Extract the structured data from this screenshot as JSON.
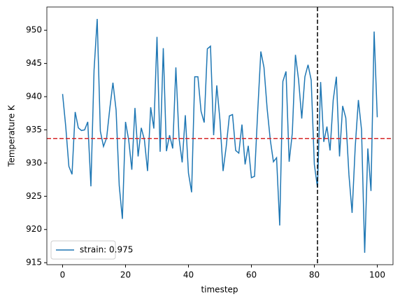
{
  "chart_data": {
    "type": "line",
    "xlabel": "timestep",
    "ylabel": "Temperature K",
    "x": [
      0,
      1,
      2,
      3,
      4,
      5,
      6,
      7,
      8,
      9,
      10,
      11,
      12,
      13,
      14,
      15,
      16,
      17,
      18,
      19,
      20,
      21,
      22,
      23,
      24,
      25,
      26,
      27,
      28,
      29,
      30,
      31,
      32,
      33,
      34,
      35,
      36,
      37,
      38,
      39,
      40,
      41,
      42,
      43,
      44,
      45,
      46,
      47,
      48,
      49,
      50,
      51,
      52,
      53,
      54,
      55,
      56,
      57,
      58,
      59,
      60,
      61,
      62,
      63,
      64,
      65,
      66,
      67,
      68,
      69,
      70,
      71,
      72,
      73,
      74,
      75,
      76,
      77,
      78,
      79,
      80,
      81,
      82,
      83,
      84,
      85,
      86,
      87,
      88,
      89,
      90,
      91,
      92,
      93,
      94,
      95,
      96,
      97,
      98,
      99,
      100
    ],
    "series": [
      {
        "name": "strain: 0.975",
        "color": "#1f77b4",
        "values": [
          940.4,
          935.5,
          929.5,
          928.3,
          937.7,
          935.3,
          934.9,
          935.0,
          936.2,
          926.5,
          944.0,
          951.7,
          934.8,
          932.5,
          933.8,
          938.2,
          942.1,
          938.0,
          926.6,
          921.6,
          936.2,
          933.5,
          929.0,
          938.3,
          931.0,
          935.3,
          933.5,
          928.8,
          938.4,
          935.2,
          949.0,
          931.7,
          947.3,
          931.8,
          934.2,
          932.2,
          944.4,
          933.8,
          930.1,
          937.2,
          928.5,
          925.6,
          943.0,
          943.0,
          937.8,
          936.1,
          947.2,
          947.6,
          934.2,
          941.7,
          936.5,
          928.8,
          932.5,
          937.1,
          937.3,
          931.9,
          931.5,
          935.8,
          929.8,
          932.6,
          927.8,
          928.0,
          937.7,
          946.8,
          944.4,
          938.2,
          933.5,
          930.2,
          930.8,
          920.6,
          942.3,
          943.8,
          930.2,
          934.5,
          946.3,
          942.5,
          936.7,
          943.0,
          944.8,
          942.5,
          929.8,
          926.3,
          942.2,
          933.2,
          935.5,
          931.9,
          939.5,
          943.0,
          931.0,
          938.6,
          936.8,
          928.2,
          922.5,
          932.5,
          939.5,
          935.0,
          916.5,
          932.2,
          925.8,
          949.8,
          936.9
        ]
      }
    ],
    "hline": {
      "value": 933.7,
      "color": "#d62728"
    },
    "vline": {
      "value": 81,
      "color": "#000000"
    },
    "xlim": [
      -5,
      105
    ],
    "ylim": [
      914.7,
      953.5
    ],
    "xticks": [
      0,
      20,
      40,
      60,
      80,
      100
    ],
    "yticks": [
      915,
      920,
      925,
      930,
      935,
      940,
      945,
      950
    ],
    "legend": "lower left",
    "grid": false
  }
}
